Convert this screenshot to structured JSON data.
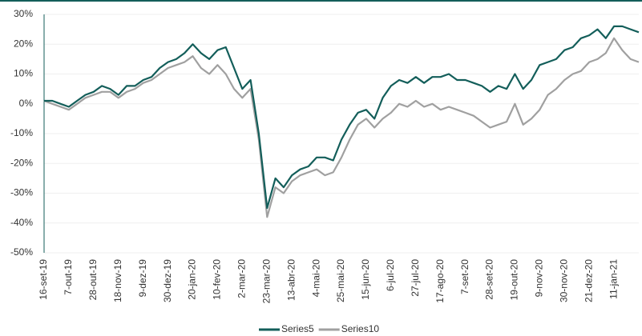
{
  "chart_data": {
    "type": "line",
    "categories": [
      "16-set-19",
      null,
      null,
      "7-out-19",
      null,
      null,
      "28-out-19",
      null,
      null,
      "18-nov-19",
      null,
      null,
      "9-dez-19",
      null,
      null,
      "30-dez-19",
      null,
      null,
      "20-jan-20",
      null,
      null,
      "10-fev-20",
      null,
      null,
      "2-mar-20",
      null,
      null,
      "23-mar-20",
      null,
      null,
      "13-abr-20",
      null,
      null,
      "4-mai-20",
      null,
      null,
      "25-mai-20",
      null,
      null,
      "15-jun-20",
      null,
      null,
      "6-jul-20",
      null,
      null,
      "27-jul-20",
      null,
      null,
      "17-ago-20",
      null,
      null,
      "7-set-20",
      null,
      null,
      "28-set-20",
      null,
      null,
      "19-out-20",
      null,
      null,
      "9-nov-20",
      null,
      null,
      "30-nov-20",
      null,
      null,
      "21-dez-20",
      null,
      null,
      "11-jan-21",
      null,
      null,
      null
    ],
    "series": [
      {
        "name": "Series5",
        "color": "#135e5a",
        "values": [
          1,
          1,
          0,
          -1,
          1,
          3,
          4,
          6,
          5,
          3,
          6,
          6,
          8,
          9,
          12,
          14,
          15,
          17,
          20,
          17,
          15,
          18,
          19,
          12,
          5,
          8,
          -10,
          -35,
          -25,
          -28,
          -24,
          -22,
          -21,
          -18,
          -18,
          -19,
          -12,
          -7,
          -3,
          -2,
          -5,
          2,
          6,
          8,
          7,
          9,
          7,
          9,
          9,
          10,
          8,
          8,
          7,
          6,
          4,
          6,
          5,
          10,
          5,
          8,
          13,
          14,
          15,
          18,
          19,
          22,
          23,
          25,
          22,
          26,
          26,
          25,
          24
        ]
      },
      {
        "name": "Series10",
        "color": "#a0a0a0",
        "values": [
          1,
          0,
          -1,
          -2,
          0,
          2,
          3,
          4,
          4,
          2,
          4,
          5,
          7,
          8,
          10,
          12,
          13,
          14,
          16,
          12,
          10,
          13,
          10,
          5,
          2,
          5,
          -12,
          -38,
          -28,
          -30,
          -26,
          -24,
          -23,
          -22,
          -24,
          -23,
          -18,
          -12,
          -7,
          -5,
          -8,
          -5,
          -3,
          0,
          -1,
          1,
          -1,
          0,
          -2,
          -1,
          -2,
          -3,
          -4,
          -6,
          -8,
          -7,
          -6,
          0,
          -7,
          -5,
          -2,
          3,
          5,
          8,
          10,
          11,
          14,
          15,
          17,
          22,
          18,
          15,
          14
        ]
      }
    ],
    "ylim": [
      -50,
      30
    ],
    "yticks": [
      {
        "value": -50,
        "label": "-50%"
      },
      {
        "value": -40,
        "label": "-40%"
      },
      {
        "value": -30,
        "label": "-30%"
      },
      {
        "value": -20,
        "label": "-20%"
      },
      {
        "value": -10,
        "label": "-10%"
      },
      {
        "value": 0,
        "label": "0%"
      },
      {
        "value": 10,
        "label": "10%"
      },
      {
        "value": 20,
        "label": "20%"
      },
      {
        "value": 30,
        "label": "30%"
      }
    ],
    "grid": true
  }
}
